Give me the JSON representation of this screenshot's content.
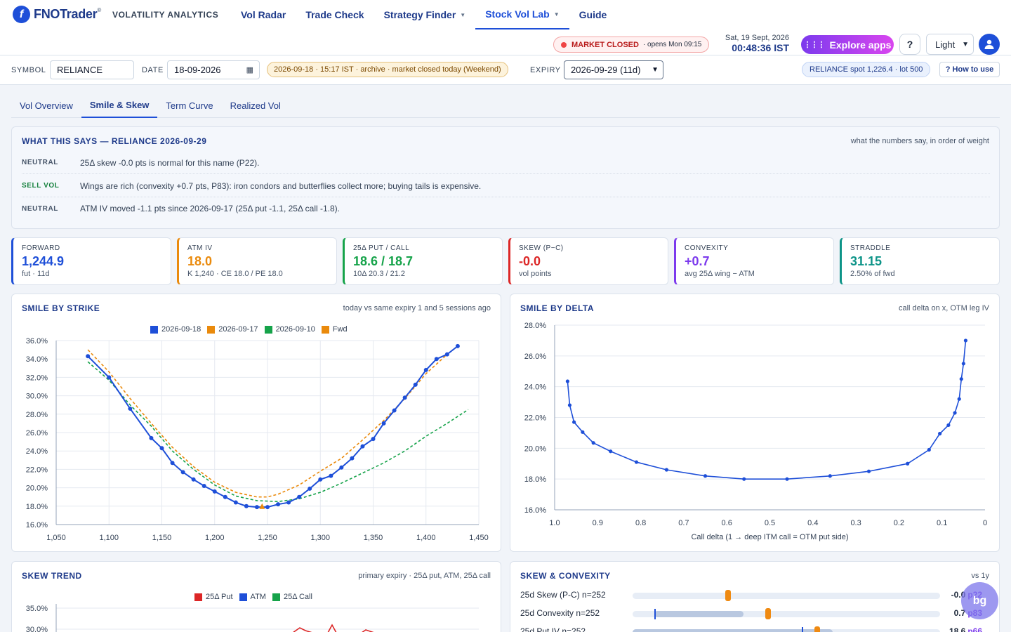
{
  "brand": {
    "logo_letter": "f",
    "name": "FNOTrader",
    "reg": "®",
    "tagline": "VOLATILITY ANALYTICS"
  },
  "nav": [
    {
      "label": "Vol Radar",
      "caret": false,
      "active": false
    },
    {
      "label": "Trade Check",
      "caret": false,
      "active": false
    },
    {
      "label": "Strategy Finder",
      "caret": true,
      "active": false
    },
    {
      "label": "Stock Vol Lab",
      "caret": true,
      "active": true
    },
    {
      "label": "Guide",
      "caret": false,
      "active": false
    }
  ],
  "market": {
    "status": "MARKET CLOSED",
    "sub": "· opens Mon 09:15"
  },
  "clock": {
    "date": "Sat, 19 Sept, 2026",
    "time": "00:48:36 IST"
  },
  "explore_label": "Explore apps",
  "help_label": "?",
  "theme_value": "Light",
  "controls": {
    "symbol_label": "SYMBOL",
    "symbol_value": "RELIANCE",
    "date_label": "DATE",
    "date_value": "18-09-2026",
    "archive_note": "2026-09-18 · 15:17 IST · archive · market closed today (Weekend)",
    "expiry_label": "EXPIRY",
    "expiry_value": "2026-09-29 (11d)",
    "spot_badge": "RELIANCE spot 1,226.4 · lot 500",
    "howto_label": "? How to use"
  },
  "tabs": [
    "Vol Overview",
    "Smile & Skew",
    "Term Curve",
    "Realized Vol"
  ],
  "active_tab": 1,
  "summary": {
    "title": "WHAT THIS SAYS — RELIANCE 2026-09-29",
    "right_note": "what the numbers say, in order of weight",
    "rows": [
      {
        "verdict": "NEUTRAL",
        "text": "25Δ skew -0.0 pts is normal for this name (P22)."
      },
      {
        "verdict": "SELL VOL",
        "text": "Wings are rich (convexity +0.7 pts, P83): iron condors and butterflies collect more; buying tails is expensive."
      },
      {
        "verdict": "NEUTRAL",
        "text": "ATM IV moved -1.1 pts since 2026-09-17 (25Δ put -1.1, 25Δ call -1.8)."
      }
    ]
  },
  "kpis": [
    {
      "label": "FORWARD",
      "value": "1,244.9",
      "sub": "fut · 11d",
      "color": "#1e4fd8"
    },
    {
      "label": "ATM IV",
      "value": "18.0",
      "sub": "K 1,240 · CE 18.0 / PE 18.0",
      "color": "#ea8a0c"
    },
    {
      "label": "25Δ PUT / CALL",
      "value": "18.6 / 18.7",
      "sub": "10Δ 20.3 / 21.2",
      "color": "#16a34a"
    },
    {
      "label": "SKEW (P−C)",
      "value": "-0.0",
      "sub": "vol points",
      "color": "#dc2626"
    },
    {
      "label": "CONVEXITY",
      "value": "+0.7",
      "sub": "avg 25Δ wing − ATM",
      "color": "#7c3aed"
    },
    {
      "label": "STRADDLE",
      "value": "31.15",
      "sub": "2.50% of fwd",
      "color": "#0d9488"
    }
  ],
  "smile_strike": {
    "title": "SMILE BY STRIKE",
    "note": "today vs same expiry 1 and 5 sessions ago",
    "legend": [
      {
        "name": "2026-09-18",
        "color": "#1e4fd8"
      },
      {
        "name": "2026-09-17",
        "color": "#ea8a0c"
      },
      {
        "name": "2026-09-10",
        "color": "#16a34a"
      },
      {
        "name": "Fwd",
        "color": "#ea8a0c"
      }
    ]
  },
  "smile_delta": {
    "title": "SMILE BY DELTA",
    "note": "call delta on x, OTM leg IV"
  },
  "skew_trend": {
    "title": "SKEW TREND",
    "note": "primary expiry · 25Δ put, ATM, 25Δ call",
    "legend": [
      {
        "name": "25Δ Put",
        "color": "#dc2626"
      },
      {
        "name": "ATM",
        "color": "#1e4fd8"
      },
      {
        "name": "25Δ Call",
        "color": "#16a34a"
      }
    ]
  },
  "skew_convexity": {
    "title": "SKEW & CONVEXITY",
    "note": "vs 1y",
    "rows": [
      {
        "name": "25d Skew (P-C) n=252",
        "value": "-0.0",
        "pct": "p22",
        "fill_from": 0.0,
        "fill_to": 0.0,
        "marker": 0.31,
        "tick": null
      },
      {
        "name": "25d Convexity n=252",
        "value": "0.7",
        "pct": "p83",
        "fill_from": 0.07,
        "fill_to": 0.36,
        "marker": 0.44,
        "tick": 0.07
      },
      {
        "name": "25d Put IV n=252",
        "value": "18.6",
        "pct": "p66",
        "fill_from": 0.0,
        "fill_to": 0.65,
        "marker": 0.6,
        "tick": 0.55
      }
    ]
  },
  "bubble_label": "bg",
  "chart_data": [
    {
      "type": "line",
      "title": "SMILE BY STRIKE",
      "xlabel": "",
      "ylabel": "",
      "xlim": [
        1050,
        1450
      ],
      "ylim": [
        16,
        36
      ],
      "x_ticks": [
        1050,
        1100,
        1150,
        1200,
        1250,
        1300,
        1350,
        1400,
        1450
      ],
      "y_ticks": [
        16,
        18,
        20,
        22,
        24,
        26,
        28,
        30,
        32,
        34,
        36
      ],
      "series": [
        {
          "name": "2026-09-18",
          "color": "#1e4fd8",
          "style": "solid-markers",
          "x": [
            1080,
            1100,
            1120,
            1140,
            1150,
            1160,
            1170,
            1180,
            1190,
            1200,
            1210,
            1220,
            1230,
            1240,
            1250,
            1260,
            1270,
            1280,
            1290,
            1300,
            1310,
            1320,
            1330,
            1340,
            1350,
            1360,
            1370,
            1380,
            1390,
            1400,
            1410,
            1420,
            1430
          ],
          "y": [
            34.3,
            32.0,
            28.6,
            25.4,
            24.3,
            22.7,
            21.7,
            20.9,
            20.2,
            19.6,
            19.0,
            18.4,
            18.0,
            17.9,
            17.9,
            18.2,
            18.4,
            19.0,
            19.9,
            20.9,
            21.3,
            22.2,
            23.2,
            24.5,
            25.3,
            27.0,
            28.4,
            29.8,
            31.2,
            32.8,
            34.0,
            34.5,
            35.4
          ]
        },
        {
          "name": "2026-09-17",
          "color": "#ea8a0c",
          "style": "dashed",
          "x": [
            1080,
            1100,
            1120,
            1140,
            1160,
            1180,
            1200,
            1220,
            1240,
            1250,
            1260,
            1280,
            1300,
            1320,
            1340,
            1360,
            1380,
            1400,
            1420,
            1430
          ],
          "y": [
            35.0,
            32.6,
            29.7,
            27.0,
            24.4,
            22.3,
            20.6,
            19.5,
            19.0,
            19.0,
            19.3,
            20.3,
            21.8,
            23.2,
            25.2,
            27.3,
            29.7,
            32.4,
            34.5,
            35.4
          ]
        },
        {
          "name": "2026-09-10",
          "color": "#16a34a",
          "style": "dashed",
          "x": [
            1080,
            1100,
            1120,
            1140,
            1160,
            1180,
            1200,
            1220,
            1240,
            1260,
            1280,
            1300,
            1320,
            1340,
            1360,
            1380,
            1400,
            1420,
            1440
          ],
          "y": [
            33.7,
            31.7,
            29.0,
            26.7,
            24.0,
            22.0,
            20.3,
            19.1,
            18.6,
            18.5,
            18.8,
            19.5,
            20.5,
            21.6,
            22.7,
            24.0,
            25.6,
            27.0,
            28.5
          ]
        }
      ],
      "forward": {
        "name": "Fwd",
        "x": 1244.9,
        "y": 18.0
      },
      "legend": "top-center",
      "grid": true
    },
    {
      "type": "line",
      "title": "SMILE BY DELTA",
      "xlabel": "Call delta (1 → deep ITM call = OTM put side)",
      "ylabel": "",
      "xlim": [
        1.0,
        0.0
      ],
      "ylim": [
        16,
        28
      ],
      "x_ticks": [
        1.0,
        0.9,
        0.8,
        0.7,
        0.6,
        0.5,
        0.4,
        0.3,
        0.2,
        0.1,
        0
      ],
      "y_ticks": [
        16,
        18,
        20,
        22,
        24,
        26,
        28
      ],
      "series": [
        {
          "name": "OTM leg IV",
          "color": "#1e4fd8",
          "x": [
            0.97,
            0.965,
            0.955,
            0.935,
            0.91,
            0.87,
            0.81,
            0.74,
            0.65,
            0.56,
            0.46,
            0.36,
            0.27,
            0.18,
            0.13,
            0.105,
            0.085,
            0.07,
            0.06,
            0.055,
            0.05,
            0.045
          ],
          "y": [
            24.35,
            22.8,
            21.7,
            21.05,
            20.35,
            19.8,
            19.1,
            18.6,
            18.2,
            18.0,
            18.0,
            18.2,
            18.5,
            19.0,
            19.9,
            20.95,
            21.5,
            22.3,
            23.2,
            24.5,
            25.5,
            27.0
          ]
        }
      ],
      "grid": true
    },
    {
      "type": "line",
      "title": "SKEW TREND",
      "xlabel": "",
      "ylabel": "",
      "y_ticks_visible": [
        35.0,
        30.0
      ],
      "series": [
        {
          "name": "25Δ Put",
          "color": "#dc2626"
        },
        {
          "name": "ATM",
          "color": "#1e4fd8"
        },
        {
          "name": "25Δ Call",
          "color": "#16a34a"
        }
      ],
      "legend": "top-center",
      "grid": true
    }
  ]
}
